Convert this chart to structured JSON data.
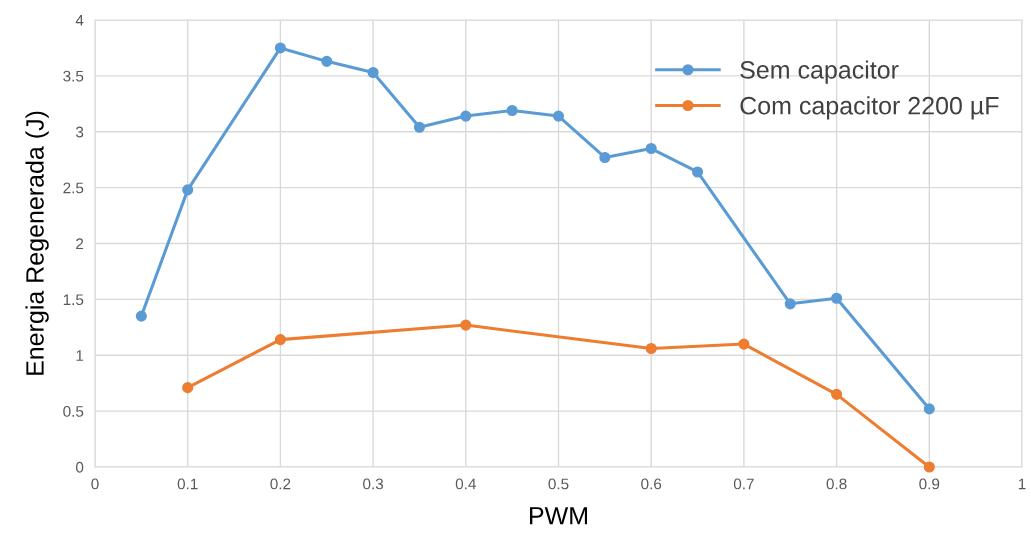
{
  "chart_data": {
    "type": "line",
    "xlabel": "PWM",
    "ylabel": "Energia Regenerada (J)",
    "xlim": [
      0,
      1
    ],
    "xticks": [
      0,
      0.1,
      0.2,
      0.3,
      0.4,
      0.5,
      0.6,
      0.7,
      0.8,
      0.9,
      1
    ],
    "ylim": [
      0,
      4
    ],
    "yticks": [
      0,
      0.5,
      1,
      1.5,
      2,
      2.5,
      3,
      3.5,
      4
    ],
    "grid": true,
    "legend": "top right",
    "marker": "circle",
    "line_style": "solid",
    "series": [
      {
        "name": "Sem capacitor",
        "color": "#5b9bd5",
        "x": [
          0.05,
          0.1,
          0.2,
          0.25,
          0.3,
          0.35,
          0.4,
          0.45,
          0.5,
          0.55,
          0.6,
          0.65,
          0.75,
          0.8,
          0.9
        ],
        "values": [
          1.35,
          2.48,
          3.75,
          3.63,
          3.53,
          3.04,
          3.14,
          3.19,
          3.14,
          2.77,
          2.85,
          2.64,
          1.46,
          1.51,
          0.52
        ]
      },
      {
        "name": "Com capacitor 2200 µF",
        "color": "#ed7d31",
        "x": [
          0.1,
          0.2,
          0.4,
          0.6,
          0.7,
          0.8,
          0.9
        ],
        "values": [
          0.71,
          1.14,
          1.27,
          1.06,
          1.1,
          0.65,
          0
        ]
      }
    ]
  }
}
